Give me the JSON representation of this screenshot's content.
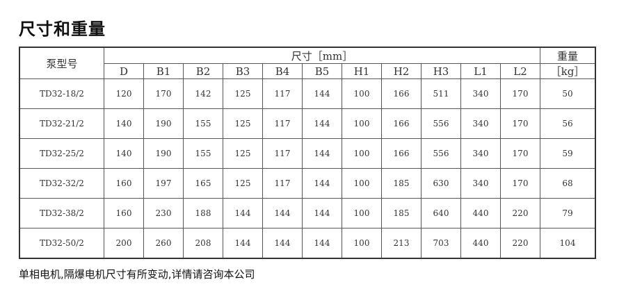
{
  "title": "尺寸和重量",
  "table": {
    "model_header": "泵型号",
    "dims_header": "尺寸［mm］",
    "weight_header": "重量",
    "weight_unit": "［kg］",
    "dim_columns": [
      "D",
      "B1",
      "B2",
      "B3",
      "B4",
      "B5",
      "H1",
      "H2",
      "H3",
      "L1",
      "L2"
    ],
    "rows": [
      {
        "model": "TD32-18/2",
        "dims": [
          "120",
          "170",
          "142",
          "125",
          "117",
          "144",
          "100",
          "166",
          "511",
          "340",
          "170"
        ],
        "weight": "50"
      },
      {
        "model": "TD32-21/2",
        "dims": [
          "140",
          "190",
          "155",
          "125",
          "117",
          "144",
          "100",
          "166",
          "556",
          "340",
          "170"
        ],
        "weight": "56"
      },
      {
        "model": "TD32-25/2",
        "dims": [
          "140",
          "190",
          "155",
          "125",
          "117",
          "144",
          "100",
          "166",
          "556",
          "340",
          "170"
        ],
        "weight": "59"
      },
      {
        "model": "TD32-32/2",
        "dims": [
          "160",
          "197",
          "165",
          "125",
          "117",
          "144",
          "100",
          "185",
          "630",
          "340",
          "170"
        ],
        "weight": "68"
      },
      {
        "model": "TD32-38/2",
        "dims": [
          "160",
          "230",
          "188",
          "144",
          "144",
          "144",
          "100",
          "185",
          "640",
          "440",
          "220"
        ],
        "weight": "79"
      },
      {
        "model": "TD32-50/2",
        "dims": [
          "200",
          "260",
          "208",
          "144",
          "144",
          "144",
          "100",
          "213",
          "703",
          "440",
          "220"
        ],
        "weight": "104"
      }
    ]
  },
  "footer": "单相电机,隔爆电机尺寸有所变动,详情请咨询本公司"
}
